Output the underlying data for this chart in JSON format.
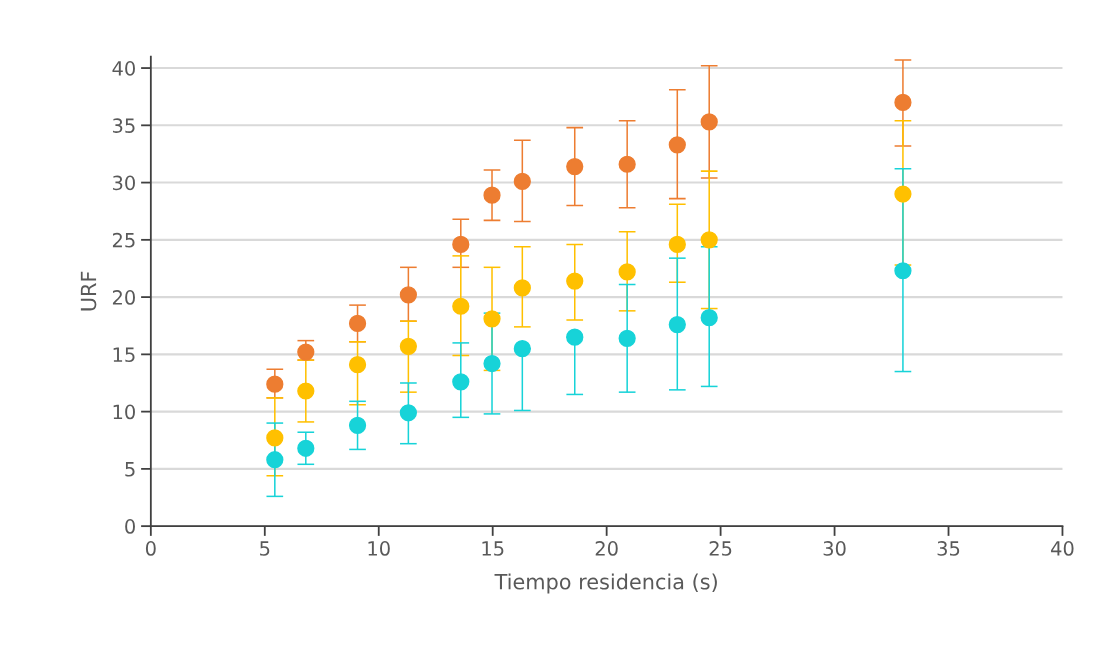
{
  "chart_data": {
    "type": "scatter",
    "xlabel": "Tiempo residencia (s)",
    "ylabel": "URF",
    "x": [
      5.44,
      6.8,
      9.07,
      11.3,
      13.6,
      14.97,
      16.3,
      18.6,
      20.9,
      23.1,
      24.5,
      33.0
    ],
    "series": [
      {
        "color": "#ed7d31",
        "values": [
          12.4,
          15.2,
          17.7,
          20.2,
          24.6,
          28.9,
          30.1,
          31.4,
          31.6,
          33.3,
          35.3,
          37.0
        ],
        "errors": [
          [
            11.2,
            13.7
          ],
          [
            14.5,
            16.2
          ],
          [
            16.1,
            19.3
          ],
          [
            17.9,
            22.6
          ],
          [
            22.6,
            26.8
          ],
          [
            26.7,
            31.1
          ],
          [
            26.6,
            33.7
          ],
          [
            28.0,
            34.8
          ],
          [
            27.8,
            35.4
          ],
          [
            28.6,
            38.1
          ],
          [
            30.4,
            40.2
          ],
          [
            33.2,
            40.7
          ]
        ]
      },
      {
        "color": "#ffc000",
        "values": [
          7.7,
          11.8,
          14.1,
          15.7,
          19.2,
          18.1,
          20.8,
          21.4,
          22.2,
          24.6,
          25.0,
          29.0
        ],
        "errors": [
          [
            4.4,
            11.2
          ],
          [
            9.1,
            14.5
          ],
          [
            10.6,
            16.1
          ],
          [
            11.7,
            17.9
          ],
          [
            14.9,
            23.6
          ],
          [
            13.6,
            22.6
          ],
          [
            17.4,
            24.4
          ],
          [
            18.0,
            24.6
          ],
          [
            18.8,
            25.7
          ],
          [
            21.3,
            28.1
          ],
          [
            19.0,
            31.0
          ],
          [
            22.8,
            35.4
          ]
        ]
      },
      {
        "color": "#17d3d8",
        "values": [
          5.8,
          6.8,
          8.8,
          9.9,
          12.6,
          14.2,
          15.5,
          16.5,
          16.4,
          17.6,
          18.2,
          22.3
        ],
        "errors": [
          [
            2.6,
            9.0
          ],
          [
            5.4,
            8.2
          ],
          [
            6.7,
            10.9
          ],
          [
            7.2,
            12.5
          ],
          [
            9.5,
            16.0
          ],
          [
            9.8,
            18.6
          ],
          [
            10.1,
            15.5
          ],
          [
            11.5,
            16.5
          ],
          [
            11.7,
            21.1
          ],
          [
            11.9,
            23.4
          ],
          [
            12.2,
            24.4
          ],
          [
            13.5,
            31.2
          ]
        ]
      }
    ],
    "xlim": [
      0,
      40
    ],
    "xticks": [
      0,
      5,
      10,
      15,
      20,
      25,
      30,
      35,
      40
    ],
    "ylim": [
      0,
      41
    ],
    "yticks": [
      0,
      5,
      10,
      15,
      20,
      25,
      30,
      35,
      40
    ],
    "grid": "y",
    "marker": "circle"
  }
}
